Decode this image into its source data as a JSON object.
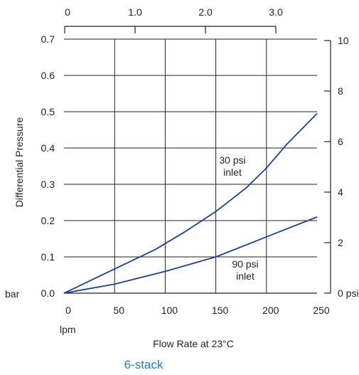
{
  "chart_data": {
    "type": "line",
    "title": "6-stack",
    "xlabel": "Flow Rate at 23°C",
    "x_unit": "lpm",
    "ylabel": "Differential Pressure",
    "y_unit": "bar",
    "right_unit": "0 psi",
    "xlim": [
      0,
      250
    ],
    "ylim": [
      0,
      0.7
    ],
    "x_ticks": [
      0,
      50,
      100,
      150,
      200,
      250
    ],
    "x_tick_labels": [
      "0",
      "50",
      "100",
      "150",
      "200",
      "250"
    ],
    "y_ticks": [
      0.0,
      0.1,
      0.2,
      0.3,
      0.4,
      0.5,
      0.6,
      0.7
    ],
    "y_tick_labels": [
      "0.0",
      "0.1",
      "0.2",
      "0.3",
      "0.4",
      "0.5",
      "0.6",
      "0.7"
    ],
    "top_axis": {
      "ticks": [
        0,
        1.0,
        2.0,
        3.0
      ],
      "labels": [
        "0",
        "1.0",
        "2.0",
        "3.0"
      ],
      "range": [
        0,
        3.0
      ]
    },
    "right_axis": {
      "ticks": [
        0,
        2,
        4,
        6,
        8,
        10
      ],
      "labels": [
        "0 psi",
        "2",
        "4",
        "6",
        "8",
        "10"
      ],
      "range": [
        0,
        10
      ]
    },
    "grid": true,
    "series": [
      {
        "name": "30 psi inlet",
        "label_lines": [
          "30 psi",
          "inlet"
        ],
        "color": "#1f3f8f",
        "x": [
          0,
          30,
          60,
          90,
          120,
          150,
          180,
          200,
          220,
          250
        ],
        "y": [
          0,
          0.04,
          0.08,
          0.12,
          0.17,
          0.225,
          0.29,
          0.345,
          0.41,
          0.495
        ]
      },
      {
        "name": "90 psi inlet",
        "label_lines": [
          "90 psi",
          "inlet"
        ],
        "color": "#1f3f8f",
        "x": [
          0,
          50,
          100,
          150,
          200,
          250
        ],
        "y": [
          0,
          0.025,
          0.06,
          0.1,
          0.155,
          0.21
        ]
      }
    ]
  }
}
